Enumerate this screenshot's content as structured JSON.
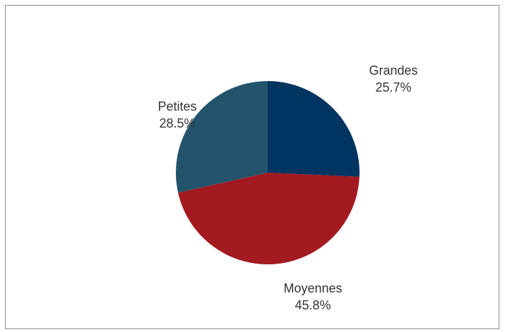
{
  "chart_data": {
    "type": "pie",
    "title": "",
    "start_angle_deg": 0,
    "direction": "clockwise",
    "slices": [
      {
        "label": "Grandes",
        "value": 25.7,
        "display": "25.7%",
        "color": "#003461"
      },
      {
        "label": "Moyennes",
        "value": 45.8,
        "display": "45.8%",
        "color": "#A31A20"
      },
      {
        "label": "Petites",
        "value": 28.5,
        "display": "28.5%",
        "color": "#23546B"
      }
    ]
  }
}
